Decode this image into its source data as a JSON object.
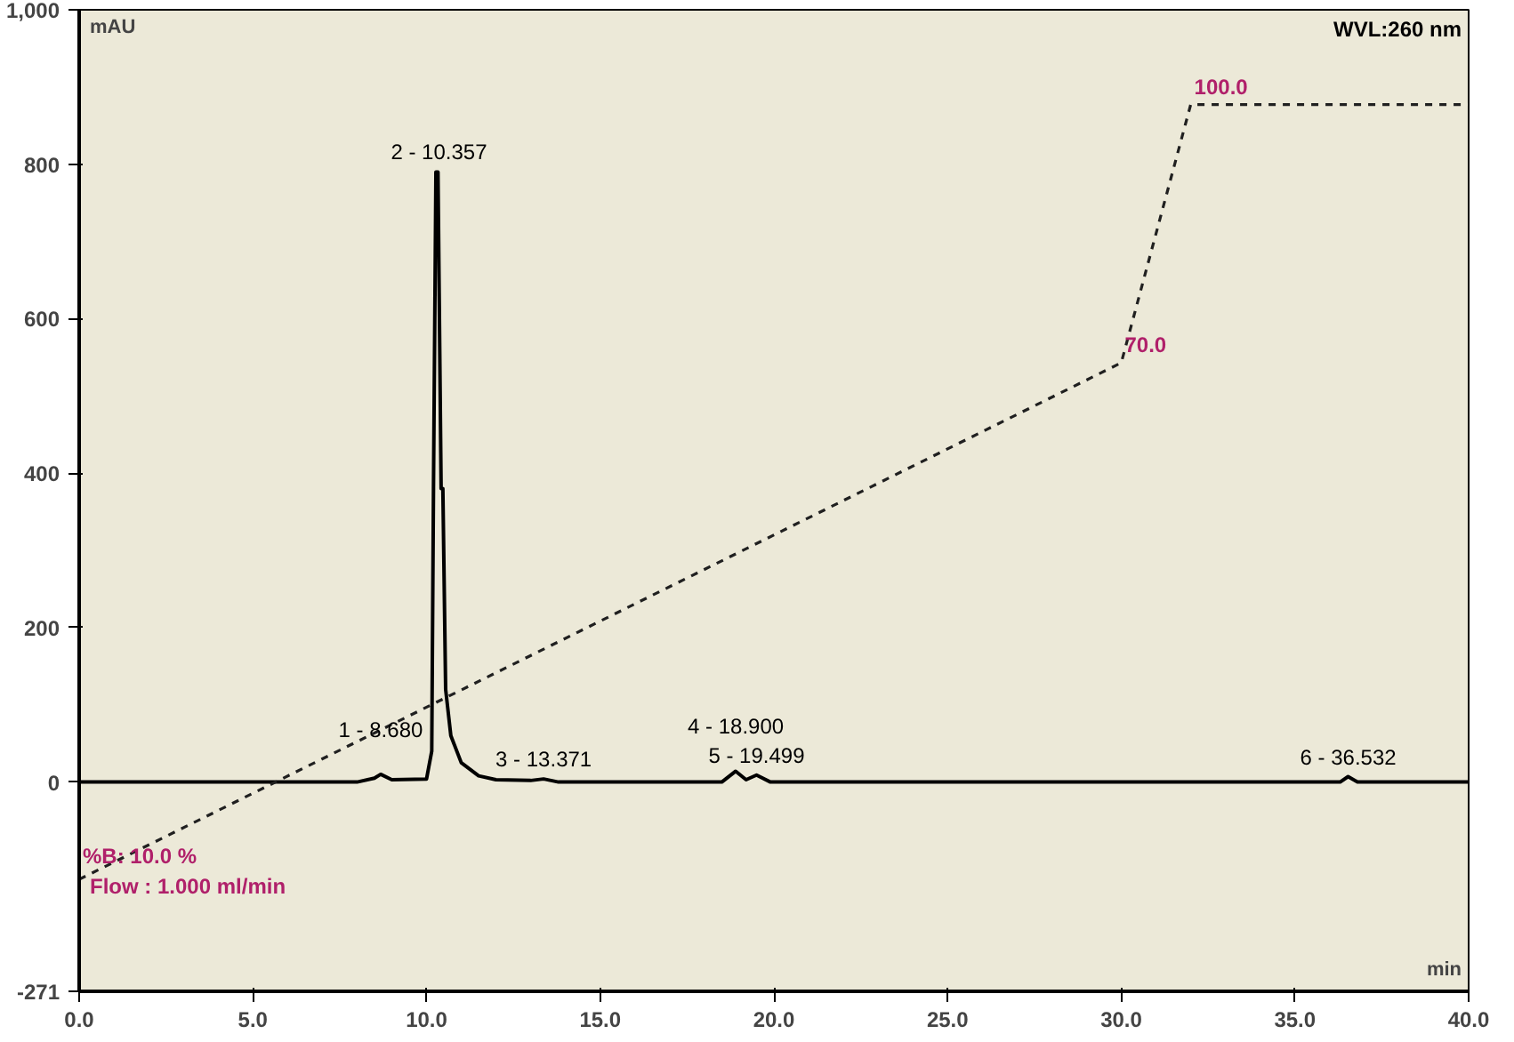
{
  "chart_data": {
    "type": "line",
    "xlabel": "min",
    "ylabel": "mAU",
    "xlim": [
      0,
      40
    ],
    "xticks": [
      {
        "value": 0,
        "label": "0.0"
      },
      {
        "value": 5,
        "label": "5.0"
      },
      {
        "value": 10,
        "label": "10.0"
      },
      {
        "value": 15,
        "label": "15.0"
      },
      {
        "value": 20,
        "label": "20.0"
      },
      {
        "value": 25,
        "label": "25.0"
      },
      {
        "value": 30,
        "label": "30.0"
      },
      {
        "value": 35,
        "label": "35.0"
      },
      {
        "value": 40,
        "label": "40.0"
      }
    ],
    "ylim": [
      -271,
      1000
    ],
    "yticks": [
      {
        "value": -271,
        "label": "-271"
      },
      0,
      200,
      400,
      600,
      800,
      {
        "value": 1000,
        "label": "1,000"
      }
    ],
    "y2lim": [
      -3,
      111
    ],
    "grid": false,
    "line_style": "solid",
    "series": [
      {
        "color": "#000000",
        "x": [
          0,
          8.0,
          8.5,
          8.68,
          9.0,
          10.0,
          10.15,
          10.2,
          10.27,
          10.33,
          10.42,
          10.47,
          10.55,
          10.7,
          11.0,
          11.5,
          12.0,
          13.0,
          13.37,
          13.8,
          18.5,
          18.9,
          19.2,
          19.5,
          19.9,
          36.3,
          36.53,
          36.8,
          40
        ],
        "values": [
          0,
          0,
          5,
          10,
          3,
          4,
          40,
          380,
          790,
          790,
          380,
          380,
          120,
          60,
          25,
          8,
          3,
          2,
          4,
          0,
          0,
          14,
          3,
          9,
          0,
          0,
          7,
          0,
          0
        ]
      },
      {
        "color": "#202020",
        "axis": "y2",
        "line_style": "dashed",
        "x": [
          0,
          30,
          32,
          40
        ],
        "values": [
          10,
          70,
          100,
          100
        ],
        "value_labels": [
          "%B: 10.0 %",
          "70.0",
          "100.0",
          null
        ]
      }
    ],
    "annotations": [
      {
        "text": "1 - 8.680",
        "x": 8.68,
        "y": 10
      },
      {
        "text": "2 - 10.357",
        "x": 10.357,
        "y": 790
      },
      {
        "text": "3 - 13.371",
        "x": 13.371,
        "y": 4
      },
      {
        "text": "4 - 18.900",
        "x": 18.9,
        "y": 14
      },
      {
        "text": "5 - 19.499",
        "x": 19.499,
        "y": 9
      },
      {
        "text": "6 - 36.532",
        "x": 36.532,
        "y": 7
      },
      "WVL:260 nm",
      "Flow : 1.000 ml/min"
    ]
  }
}
